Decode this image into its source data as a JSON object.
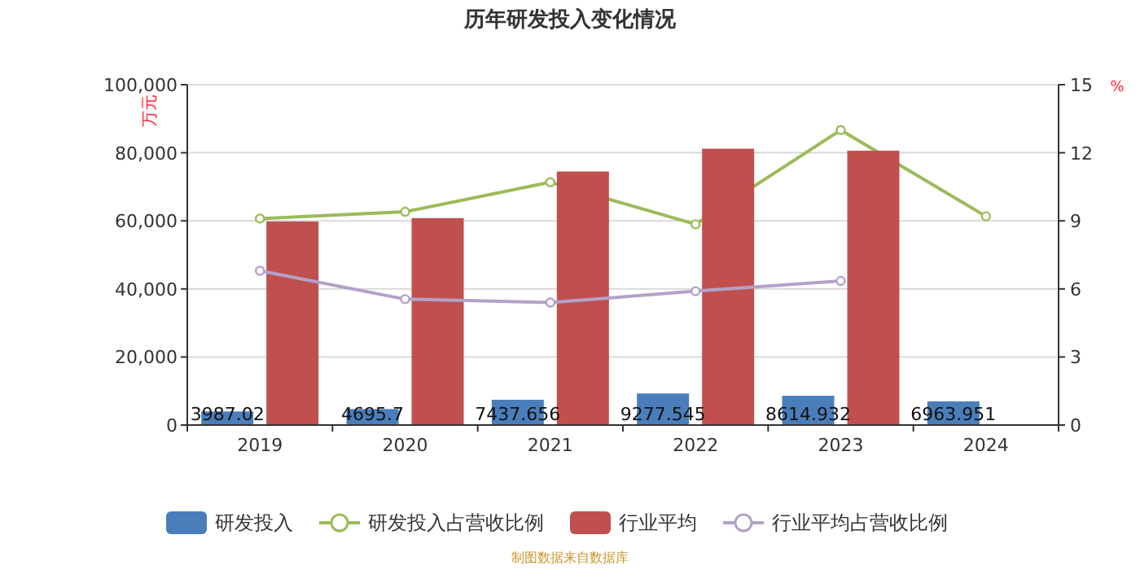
{
  "chart_data": {
    "type": "bar",
    "title": "历年研发投入变化情况",
    "ylabel": "万元",
    "y2label": "%",
    "categories": [
      "2019",
      "2020",
      "2021",
      "2022",
      "2023",
      "2024"
    ],
    "series": [
      {
        "name": "研发投入",
        "color": "#4a7ebb",
        "values": [
          3987.02,
          4695.7,
          7437.656,
          9277.545,
          8614.932,
          6963.951
        ],
        "data_labels": true
      },
      {
        "name": "研发投入占营收比例",
        "type": "line",
        "axis": "y2",
        "color": "#9bbb59",
        "values": [
          9.1,
          9.4,
          10.7,
          8.85,
          13.0,
          9.2
        ]
      },
      {
        "name": "行业平均",
        "color": "#c0504d",
        "values": [
          59800,
          60800,
          74500,
          81200,
          80600,
          null
        ]
      },
      {
        "name": "行业平均占营收比例",
        "type": "line",
        "axis": "y2",
        "color": "#b3a2c7",
        "values": [
          6.8,
          5.55,
          5.4,
          5.9,
          6.35,
          null
        ]
      }
    ],
    "ylim": [
      0,
      100000
    ],
    "yticks": [
      {
        "value": 0,
        "label": "0"
      },
      {
        "value": 20000,
        "label": "20,000"
      },
      {
        "value": 40000,
        "label": "40,000"
      },
      {
        "value": 60000,
        "label": "60,000"
      },
      {
        "value": 80000,
        "label": "80,000"
      },
      {
        "value": 100000,
        "label": "100,000"
      }
    ],
    "y2lim": [
      0,
      15
    ],
    "y2ticks": [
      0,
      3,
      6,
      9,
      12,
      15
    ],
    "grid": "y",
    "legend": "bottom",
    "marker": "circle",
    "annotations": [
      "制图数据来自数据库"
    ]
  }
}
